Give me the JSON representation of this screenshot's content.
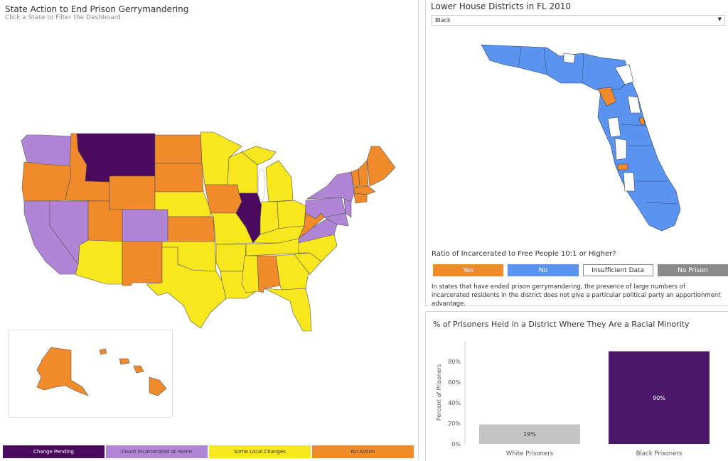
{
  "left": {
    "title": "State Action to End Prison Gerrymandering",
    "subtitle": "Click a State to Filter the Dashboard"
  },
  "colors": {
    "change_pending": "#4b0a5e",
    "count_at_home": "#b085d6",
    "some_local": "#f8e71c",
    "no_action": "#f08a2b"
  },
  "legend": [
    {
      "label": "Change Pending",
      "color": "#4b0a5e",
      "text_color": "#ffffff"
    },
    {
      "label": "Count Incarcerated at Home",
      "color": "#b085d6",
      "text_color": "#333333"
    },
    {
      "label": "Some Local Changes",
      "color": "#f8e71c",
      "text_color": "#333333"
    },
    {
      "label": "No Action",
      "color": "#f08a2b",
      "text_color": "#333333"
    }
  ],
  "right_top": {
    "title": "Lower House Districts in FL 2010",
    "dropdown_value": "Black",
    "ratio_question": "Ratio of Incarcerated to Free People 10:1 or Higher?",
    "ratio_buttons": [
      {
        "label": "Yes",
        "bg": "#f08a2b",
        "fg": "#ffffff"
      },
      {
        "label": "No",
        "bg": "#5b94f0",
        "fg": "#ffffff"
      },
      {
        "label": "Insufficient Data",
        "bg": "#ffffff",
        "fg": "#333333"
      },
      {
        "label": "No Prison",
        "bg": "#8a8a8a",
        "fg": "#ffffff"
      }
    ],
    "note": "In states that have ended prison gerrymandering, the presence of large numbers of incarcerated residents in the district does not give a particular political party an apportionment advantage."
  },
  "right_bottom": {
    "title": "% of Prisoners Held in a District Where They Are a Racial Minority"
  },
  "chart_data": {
    "type": "bar",
    "title": "% of Prisoners Held in a District Where They Are a Racial Minority",
    "categories": [
      "White Prisoners",
      "Black Prisoners"
    ],
    "values": [
      19,
      90
    ],
    "value_labels": [
      "19%",
      "90%"
    ],
    "bar_colors": [
      "#c4c4c4",
      "#4b1869"
    ],
    "ylabel": "Percent of Prisoners",
    "ylim": [
      0,
      100
    ],
    "yticks": [
      "0%",
      "20%",
      "40%",
      "60%",
      "80%"
    ],
    "grid": false
  }
}
